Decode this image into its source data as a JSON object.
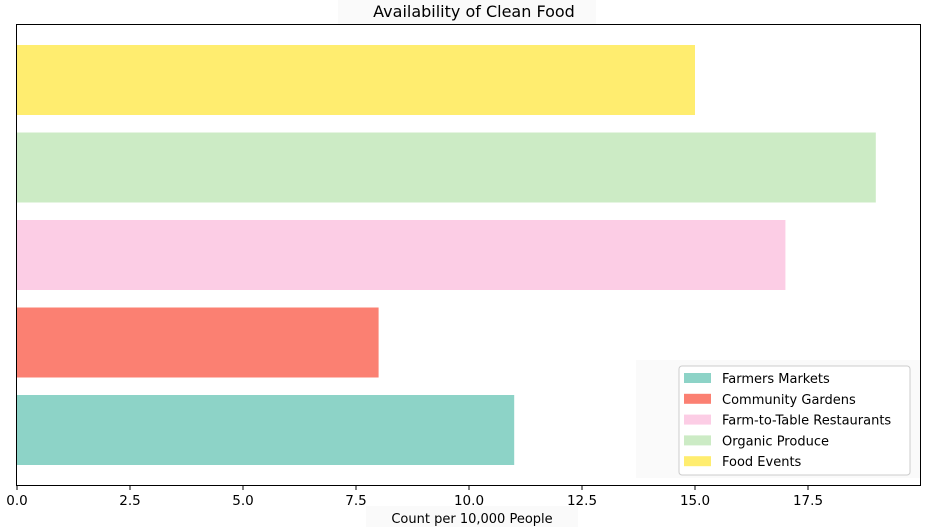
{
  "chart_data": {
    "type": "bar",
    "orientation": "horizontal",
    "title": "Availability of Clean Food",
    "xlabel": "Count per 10,000 People",
    "ylabel": "",
    "categories": [
      "Farmers Markets",
      "Community Gardens",
      "Farm-to-Table Restaurants",
      "Organic Produce",
      "Food Events"
    ],
    "values": [
      11,
      8,
      17,
      19,
      15
    ],
    "colors": [
      "#8dd3c7",
      "#fb8072",
      "#fccde5",
      "#ccebc5",
      "#ffed6f"
    ],
    "xlim": [
      0,
      20
    ],
    "xticks": [
      "0.0",
      "2.5",
      "5.0",
      "7.5",
      "10.0",
      "12.5",
      "15.0",
      "17.5"
    ],
    "xtick_values": [
      0,
      2.5,
      5,
      7.5,
      10,
      12.5,
      15,
      17.5
    ],
    "grid": false,
    "legend": {
      "placement": "lower-right",
      "entries": [
        "Farmers Markets",
        "Community Gardens",
        "Farm-to-Table Restaurants",
        "Organic Produce",
        "Food Events"
      ]
    }
  }
}
